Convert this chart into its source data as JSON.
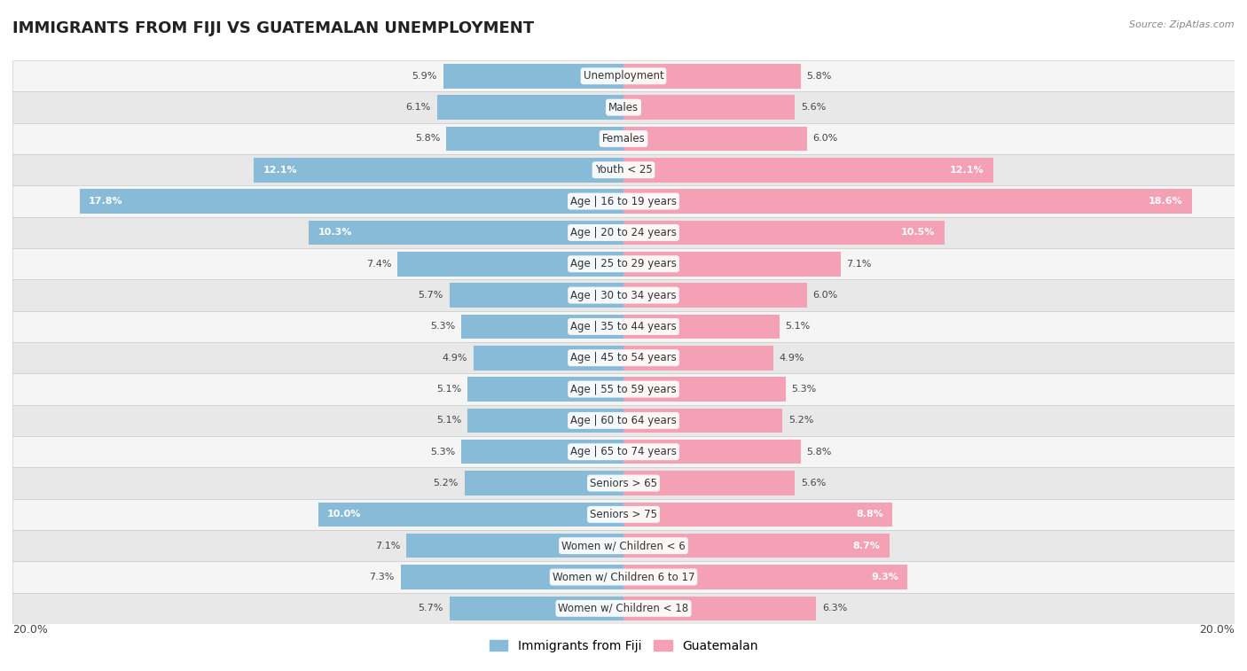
{
  "title": "IMMIGRANTS FROM FIJI VS GUATEMALAN UNEMPLOYMENT",
  "source": "Source: ZipAtlas.com",
  "categories": [
    "Unemployment",
    "Males",
    "Females",
    "Youth < 25",
    "Age | 16 to 19 years",
    "Age | 20 to 24 years",
    "Age | 25 to 29 years",
    "Age | 30 to 34 years",
    "Age | 35 to 44 years",
    "Age | 45 to 54 years",
    "Age | 55 to 59 years",
    "Age | 60 to 64 years",
    "Age | 65 to 74 years",
    "Seniors > 65",
    "Seniors > 75",
    "Women w/ Children < 6",
    "Women w/ Children 6 to 17",
    "Women w/ Children < 18"
  ],
  "fiji_values": [
    5.9,
    6.1,
    5.8,
    12.1,
    17.8,
    10.3,
    7.4,
    5.7,
    5.3,
    4.9,
    5.1,
    5.1,
    5.3,
    5.2,
    10.0,
    7.1,
    7.3,
    5.7
  ],
  "guatemalan_values": [
    5.8,
    5.6,
    6.0,
    12.1,
    18.6,
    10.5,
    7.1,
    6.0,
    5.1,
    4.9,
    5.3,
    5.2,
    5.8,
    5.6,
    8.8,
    8.7,
    9.3,
    6.3
  ],
  "fiji_color": "#88bbd8",
  "guatemalan_color": "#f4a0b5",
  "fiji_label": "Immigrants from Fiji",
  "guatemalan_label": "Guatemalan",
  "xlim": 20.0,
  "row_color_even": "#f5f5f5",
  "row_color_odd": "#e8e8e8",
  "title_fontsize": 13,
  "label_fontsize": 8.5,
  "value_fontsize": 8
}
